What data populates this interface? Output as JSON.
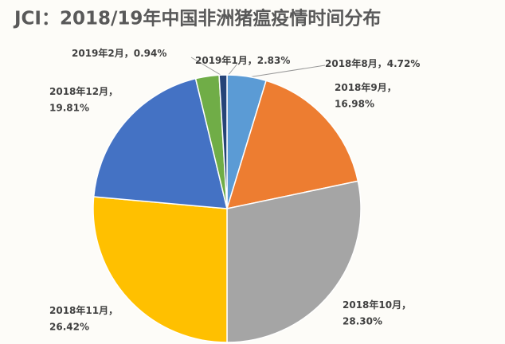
{
  "chart_data": {
    "type": "pie",
    "title": "JCI：2018/19年中国非洲猪瘟疫情时间分布",
    "categories": [
      "2018年8月",
      "2018年9月",
      "2018年10月",
      "2018年11月",
      "2018年12月",
      "2019年1月",
      "2019年2月"
    ],
    "values": [
      4.72,
      16.98,
      28.3,
      26.42,
      19.81,
      2.83,
      0.94
    ],
    "value_labels": [
      "4.72%",
      "16.98%",
      "28.30%",
      "26.42%",
      "19.81%",
      "2.83%",
      "0.94%"
    ],
    "separator": "，",
    "colors": [
      "#5b9bd5",
      "#ed7d31",
      "#a5a5a5",
      "#ffc000",
      "#4472c4",
      "#70ad47",
      "#264478"
    ]
  }
}
